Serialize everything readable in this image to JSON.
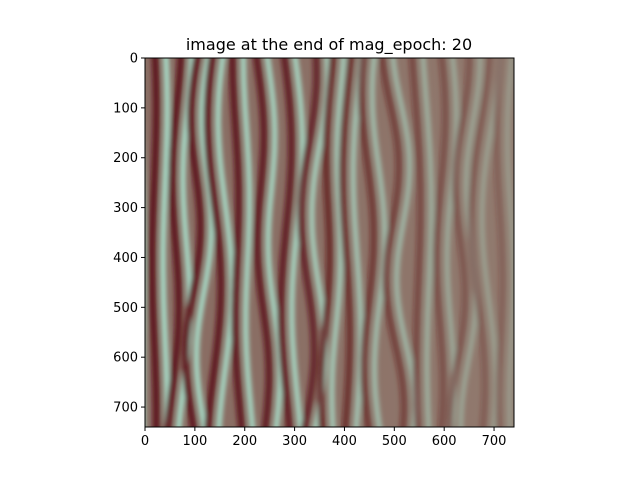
{
  "figure": {
    "title": "image at the end of mag_epoch: 20"
  },
  "axes": {
    "x_ticks": [
      "0",
      "100",
      "200",
      "300",
      "400",
      "500",
      "600",
      "700"
    ],
    "y_ticks": [
      "0",
      "100",
      "200",
      "300",
      "400",
      "500",
      "600",
      "700"
    ],
    "x_range": [
      0,
      740
    ],
    "y_range": [
      0,
      740
    ],
    "y_inverted": true
  },
  "image": {
    "description_colors": {
      "ridge": "#a8dcc8",
      "trough": "#5a0f14",
      "mid": "#8c7a6a",
      "background_haze": "#9a8a7c"
    }
  }
}
